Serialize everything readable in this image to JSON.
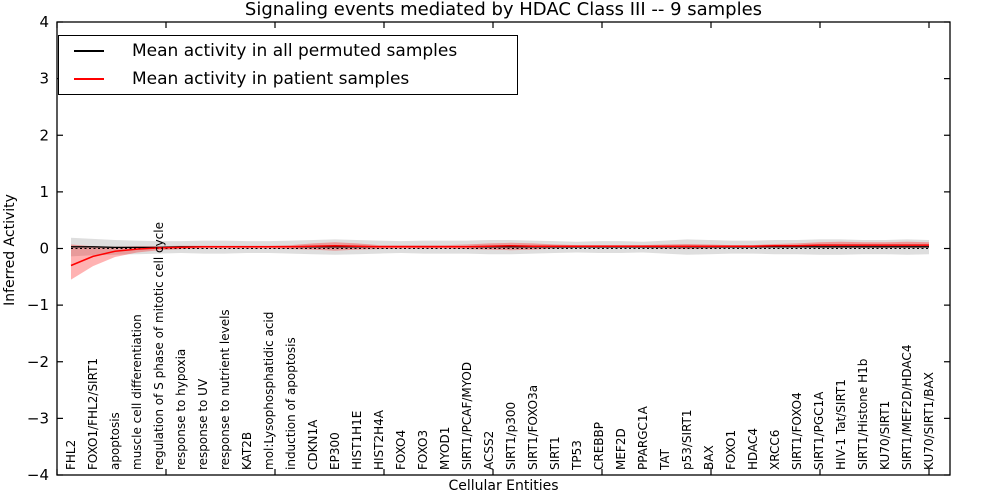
{
  "chart_data": {
    "type": "line",
    "title": "Signaling events mediated by HDAC Class III -- 9 samples",
    "xlabel": "Cellular Entities",
    "ylabel": "Inferred Activity",
    "ylim": [
      -4,
      4
    ],
    "yticks": [
      -4,
      -3,
      -2,
      -1,
      0,
      1,
      2,
      3,
      4
    ],
    "grid": false,
    "legend_position": "upper left",
    "zero_line": "dotted",
    "categories": [
      "FHL2",
      "FOXO1/FHL2/SIRT1",
      "apoptosis",
      "muscle cell differentiation",
      "regulation of S phase of mitotic cell cycle",
      "response to hypoxia",
      "response to UV",
      "response to nutrient levels",
      "KAT2B",
      "mol:Lysophosphatidic acid",
      "induction of apoptosis",
      "CDKN1A",
      "EP300",
      "HIST1H1E",
      "HIST2H4A",
      "FOXO4",
      "FOXO3",
      "MYOD1",
      "SIRT1/PCAF/MYOD",
      "ACSS2",
      "SIRT1/p300",
      "SIRT1/FOXO3a",
      "SIRT1",
      "TP53",
      "CREBBP",
      "MEF2D",
      "PPARGC1A",
      "TAT",
      "p53/SIRT1",
      "BAX",
      "FOXO1",
      "HDAC4",
      "XRCC6",
      "SIRT1/FOXO4",
      "SIRT1/PGC1A",
      "HIV-1 Tat/SIRT1",
      "SIRT1/Histone H1b",
      "KU70/SIRT1",
      "SIRT1/MEF2D/HDAC4",
      "KU70/SIRT1/BAX"
    ],
    "series": [
      {
        "name": "Mean activity in all permuted samples",
        "color": "#000000",
        "band_color": "rgba(0,0,0,0.13)",
        "values": [
          0.03,
          0.03,
          0.02,
          0.02,
          0.02,
          0.03,
          0.03,
          0.03,
          0.03,
          0.03,
          0.03,
          0.03,
          0.03,
          0.03,
          0.03,
          0.03,
          0.03,
          0.03,
          0.03,
          0.03,
          0.03,
          0.03,
          0.03,
          0.03,
          0.03,
          0.03,
          0.03,
          0.03,
          0.03,
          0.03,
          0.03,
          0.03,
          0.03,
          0.03,
          0.03,
          0.03,
          0.03,
          0.03,
          0.03,
          0.03
        ],
        "band_upper": [
          0.19,
          0.17,
          0.15,
          0.14,
          0.13,
          0.13,
          0.14,
          0.14,
          0.13,
          0.13,
          0.14,
          0.15,
          0.16,
          0.15,
          0.14,
          0.13,
          0.14,
          0.14,
          0.14,
          0.15,
          0.15,
          0.14,
          0.13,
          0.12,
          0.13,
          0.13,
          0.12,
          0.14,
          0.16,
          0.15,
          0.14,
          0.14,
          0.15,
          0.15,
          0.16,
          0.16,
          0.15,
          0.15,
          0.16,
          0.15
        ],
        "band_lower": [
          -0.14,
          -0.12,
          -0.11,
          -0.1,
          -0.09,
          -0.08,
          -0.09,
          -0.09,
          -0.08,
          -0.08,
          -0.09,
          -0.1,
          -0.11,
          -0.1,
          -0.09,
          -0.08,
          -0.09,
          -0.09,
          -0.09,
          -0.1,
          -0.1,
          -0.09,
          -0.08,
          -0.07,
          -0.08,
          -0.08,
          -0.07,
          -0.09,
          -0.11,
          -0.1,
          -0.09,
          -0.09,
          -0.1,
          -0.1,
          -0.11,
          -0.11,
          -0.1,
          -0.1,
          -0.11,
          -0.1
        ]
      },
      {
        "name": "Mean activity in patient samples",
        "color": "#ff0000",
        "band_color": "rgba(255,0,0,0.30)",
        "values": [
          -0.3,
          -0.14,
          -0.05,
          -0.01,
          0.01,
          0.02,
          0.03,
          0.03,
          0.03,
          0.03,
          0.03,
          0.04,
          0.05,
          0.04,
          0.03,
          0.03,
          0.03,
          0.03,
          0.03,
          0.04,
          0.05,
          0.04,
          0.04,
          0.04,
          0.04,
          0.04,
          0.04,
          0.04,
          0.04,
          0.04,
          0.04,
          0.04,
          0.05,
          0.05,
          0.06,
          0.06,
          0.06,
          0.06,
          0.06,
          0.06
        ],
        "band_upper": [
          0.07,
          0.04,
          0.03,
          0.04,
          0.04,
          0.05,
          0.05,
          0.05,
          0.05,
          0.05,
          0.06,
          0.09,
          0.11,
          0.09,
          0.06,
          0.06,
          0.06,
          0.06,
          0.07,
          0.09,
          0.1,
          0.09,
          0.07,
          0.06,
          0.06,
          0.06,
          0.06,
          0.07,
          0.08,
          0.07,
          0.06,
          0.06,
          0.08,
          0.09,
          0.11,
          0.12,
          0.11,
          0.11,
          0.12,
          0.11
        ],
        "band_lower": [
          -0.55,
          -0.31,
          -0.15,
          -0.07,
          -0.03,
          -0.01,
          0.0,
          0.0,
          0.0,
          0.0,
          -0.01,
          -0.02,
          -0.04,
          -0.02,
          -0.01,
          0.0,
          0.0,
          0.0,
          -0.01,
          -0.02,
          -0.03,
          -0.02,
          0.0,
          0.01,
          0.01,
          0.01,
          0.01,
          0.0,
          -0.01,
          0.0,
          0.01,
          0.01,
          0.02,
          0.02,
          0.01,
          0.01,
          0.01,
          0.01,
          0.01,
          0.01
        ]
      }
    ]
  }
}
